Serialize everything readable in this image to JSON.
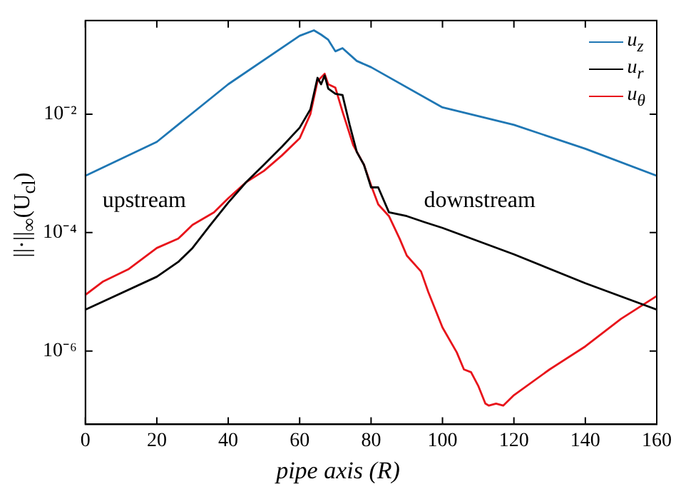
{
  "chart_data": {
    "type": "line",
    "xlabel": "pipe axis (R)",
    "ylabel": "||·||$_{∞}$(U$_{cl}$)",
    "log": "y",
    "grid": false,
    "legend": "top right",
    "marker": "none",
    "line_style": "solid",
    "xlim": [
      0,
      160
    ],
    "xticks": [
      0,
      20,
      40,
      60,
      80,
      100,
      120,
      140,
      160
    ],
    "ylim": [
      5.8e-08,
      0.38
    ],
    "yticks": [
      {
        "value": 1e-06,
        "label": "10⁻⁶"
      },
      {
        "value": 0.0001,
        "label": "10⁻⁴"
      },
      {
        "value": 0.01,
        "label": "10⁻²"
      }
    ],
    "annotations": [
      "upstream",
      "downstream"
    ],
    "series": [
      {
        "name": "u$_{z}$",
        "color": "#1f77b4",
        "x": [
          0,
          20,
          40,
          60,
          64,
          66,
          68,
          70,
          72,
          76,
          80,
          100,
          120,
          140,
          160
        ],
        "values": [
          0.00091,
          0.0034,
          0.032,
          0.21,
          0.26,
          0.22,
          0.18,
          0.115,
          0.13,
          0.079,
          0.062,
          0.013,
          0.0066,
          0.0026,
          0.00091
        ]
      },
      {
        "name": "u$_{r}$",
        "color": "#000000",
        "x": [
          0,
          5,
          20,
          26,
          30,
          35,
          40,
          45,
          50,
          55,
          60,
          63,
          65,
          66,
          67,
          68,
          70,
          72,
          74,
          76,
          78,
          80,
          82,
          85,
          90,
          95,
          100,
          120,
          140,
          160
        ],
        "values": [
          5e-06,
          6.9e-06,
          1.8e-05,
          3.2e-05,
          5.5e-05,
          0.000135,
          0.00032,
          0.00071,
          0.0014,
          0.0028,
          0.0059,
          0.012,
          0.041,
          0.032,
          0.045,
          0.027,
          0.022,
          0.021,
          0.0066,
          0.0023,
          0.0014,
          0.00058,
          0.00058,
          0.00022,
          0.00019,
          0.00015,
          0.00012,
          4.3e-05,
          1.4e-05,
          5e-06
        ]
      },
      {
        "name": "u$_{θ}$",
        "color": "#e8141b",
        "x": [
          0,
          5,
          12,
          20,
          26,
          30,
          36,
          40,
          45,
          50,
          55,
          60,
          63,
          65,
          67,
          68,
          70,
          72,
          75,
          78,
          80,
          82,
          85,
          88,
          90,
          94,
          96,
          100,
          104,
          106,
          108,
          110,
          112,
          113,
          115,
          117,
          120,
          130,
          140,
          150,
          160
        ],
        "values": [
          8.9e-06,
          1.5e-05,
          2.4e-05,
          5.5e-05,
          7.9e-05,
          0.000135,
          0.00022,
          0.00038,
          0.00071,
          0.0011,
          0.002,
          0.0039,
          0.01,
          0.036,
          0.048,
          0.032,
          0.028,
          0.011,
          0.003,
          0.0014,
          0.00063,
          0.0003,
          0.00019,
          7.9e-05,
          4.1e-05,
          2.2e-05,
          1e-05,
          2.5e-06,
          9.5e-07,
          4.9e-07,
          4.4e-07,
          2.6e-07,
          1.3e-07,
          1.2e-07,
          1.3e-07,
          1.2e-07,
          1.8e-07,
          4.9e-07,
          1.2e-06,
          3.5e-06,
          8.5e-06
        ]
      }
    ]
  }
}
